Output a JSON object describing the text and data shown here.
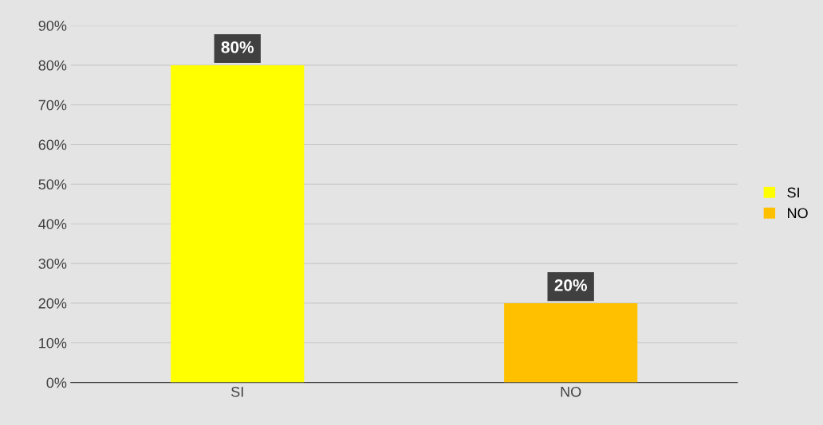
{
  "chart_data": {
    "type": "bar",
    "categories": [
      "SI",
      "NO"
    ],
    "series": [
      {
        "name": "SI",
        "color": "#ffff00",
        "values": [
          80,
          null
        ],
        "value_labels": [
          "80%",
          null
        ]
      },
      {
        "name": "NO",
        "color": "#ffc000",
        "values": [
          null,
          20
        ],
        "value_labels": [
          null,
          "20%"
        ]
      }
    ],
    "ylim": [
      0,
      90
    ],
    "yticks": [
      {
        "value": 0,
        "label": "0%"
      },
      {
        "value": 10,
        "label": "10%"
      },
      {
        "value": 20,
        "label": "20%"
      },
      {
        "value": 30,
        "label": "30%"
      },
      {
        "value": 40,
        "label": "40%"
      },
      {
        "value": 50,
        "label": "50%"
      },
      {
        "value": 60,
        "label": "60%"
      },
      {
        "value": 70,
        "label": "70%"
      },
      {
        "value": 80,
        "label": "80%"
      },
      {
        "value": 90,
        "label": "90%"
      }
    ],
    "grid": "y",
    "legend": "right"
  }
}
